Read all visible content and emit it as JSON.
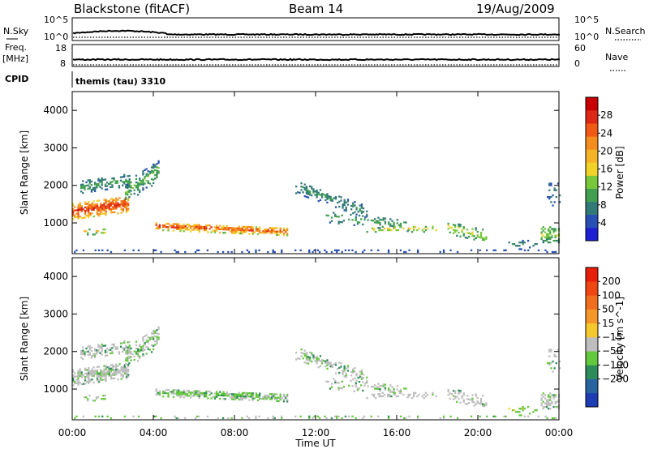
{
  "header": {
    "station": "Blackstone (fitACF)",
    "beam": "Beam 14",
    "date": "19/Aug/2009"
  },
  "summary": {
    "left_labels": {
      "nsky": "N.Sky",
      "freq": "Freq.",
      "freq_unit": "[MHz]",
      "cpid": "CPID"
    },
    "right_labels": {
      "nsearch": "N.Search",
      "nave": "Nave"
    },
    "nsky_ticks": [
      "10^5",
      "10^0"
    ],
    "nsearch_ticks": [
      "10^5",
      "10^0"
    ],
    "freq_ticks": [
      "18",
      "8"
    ],
    "nave_ticks": [
      "60",
      "0"
    ],
    "cpid_text": "themis (tau) 3310"
  },
  "chart_data": [
    {
      "type": "heatmap",
      "name": "power",
      "ylabel": "Slant Range [km]",
      "ylim": [
        180,
        4500
      ],
      "yticks": [
        1000,
        2000,
        3000,
        4000
      ],
      "xlim": [
        0,
        24
      ],
      "colorbar": {
        "label": "Power [dB]",
        "range": [
          0,
          32
        ],
        "ticks": [
          "4",
          "8",
          "12",
          "16",
          "20",
          "24",
          "28"
        ],
        "colors": [
          "#1e1ed2",
          "#2850b4",
          "#327a78",
          "#41a050",
          "#78c83c",
          "#f0d228",
          "#f5b428",
          "#f58c1e",
          "#f05a14",
          "#dc2814",
          "#c80000"
        ]
      }
    },
    {
      "type": "heatmap",
      "name": "velocity",
      "ylabel": "Slant Range [km]",
      "ylim": [
        180,
        4500
      ],
      "yticks": [
        1000,
        2000,
        3000,
        4000
      ],
      "xlim": [
        0,
        24
      ],
      "colorbar": {
        "label": "Velocity [m s^-1]",
        "ticks": [
          "200",
          "100",
          "50",
          "15",
          "−15",
          "−50",
          "−100",
          "−200"
        ],
        "colors": [
          "#1e3cb4",
          "#2864a0",
          "#2d8c5a",
          "#64c83c",
          "#bebebe",
          "#f5c82d",
          "#f59628",
          "#f06e1e",
          "#f04614",
          "#e61e0a"
        ]
      }
    }
  ],
  "time_axis": {
    "label": "Time UT",
    "ticks": [
      "00:00",
      "04:00",
      "08:00",
      "12:00",
      "16:00",
      "20:00",
      "00:00"
    ]
  }
}
